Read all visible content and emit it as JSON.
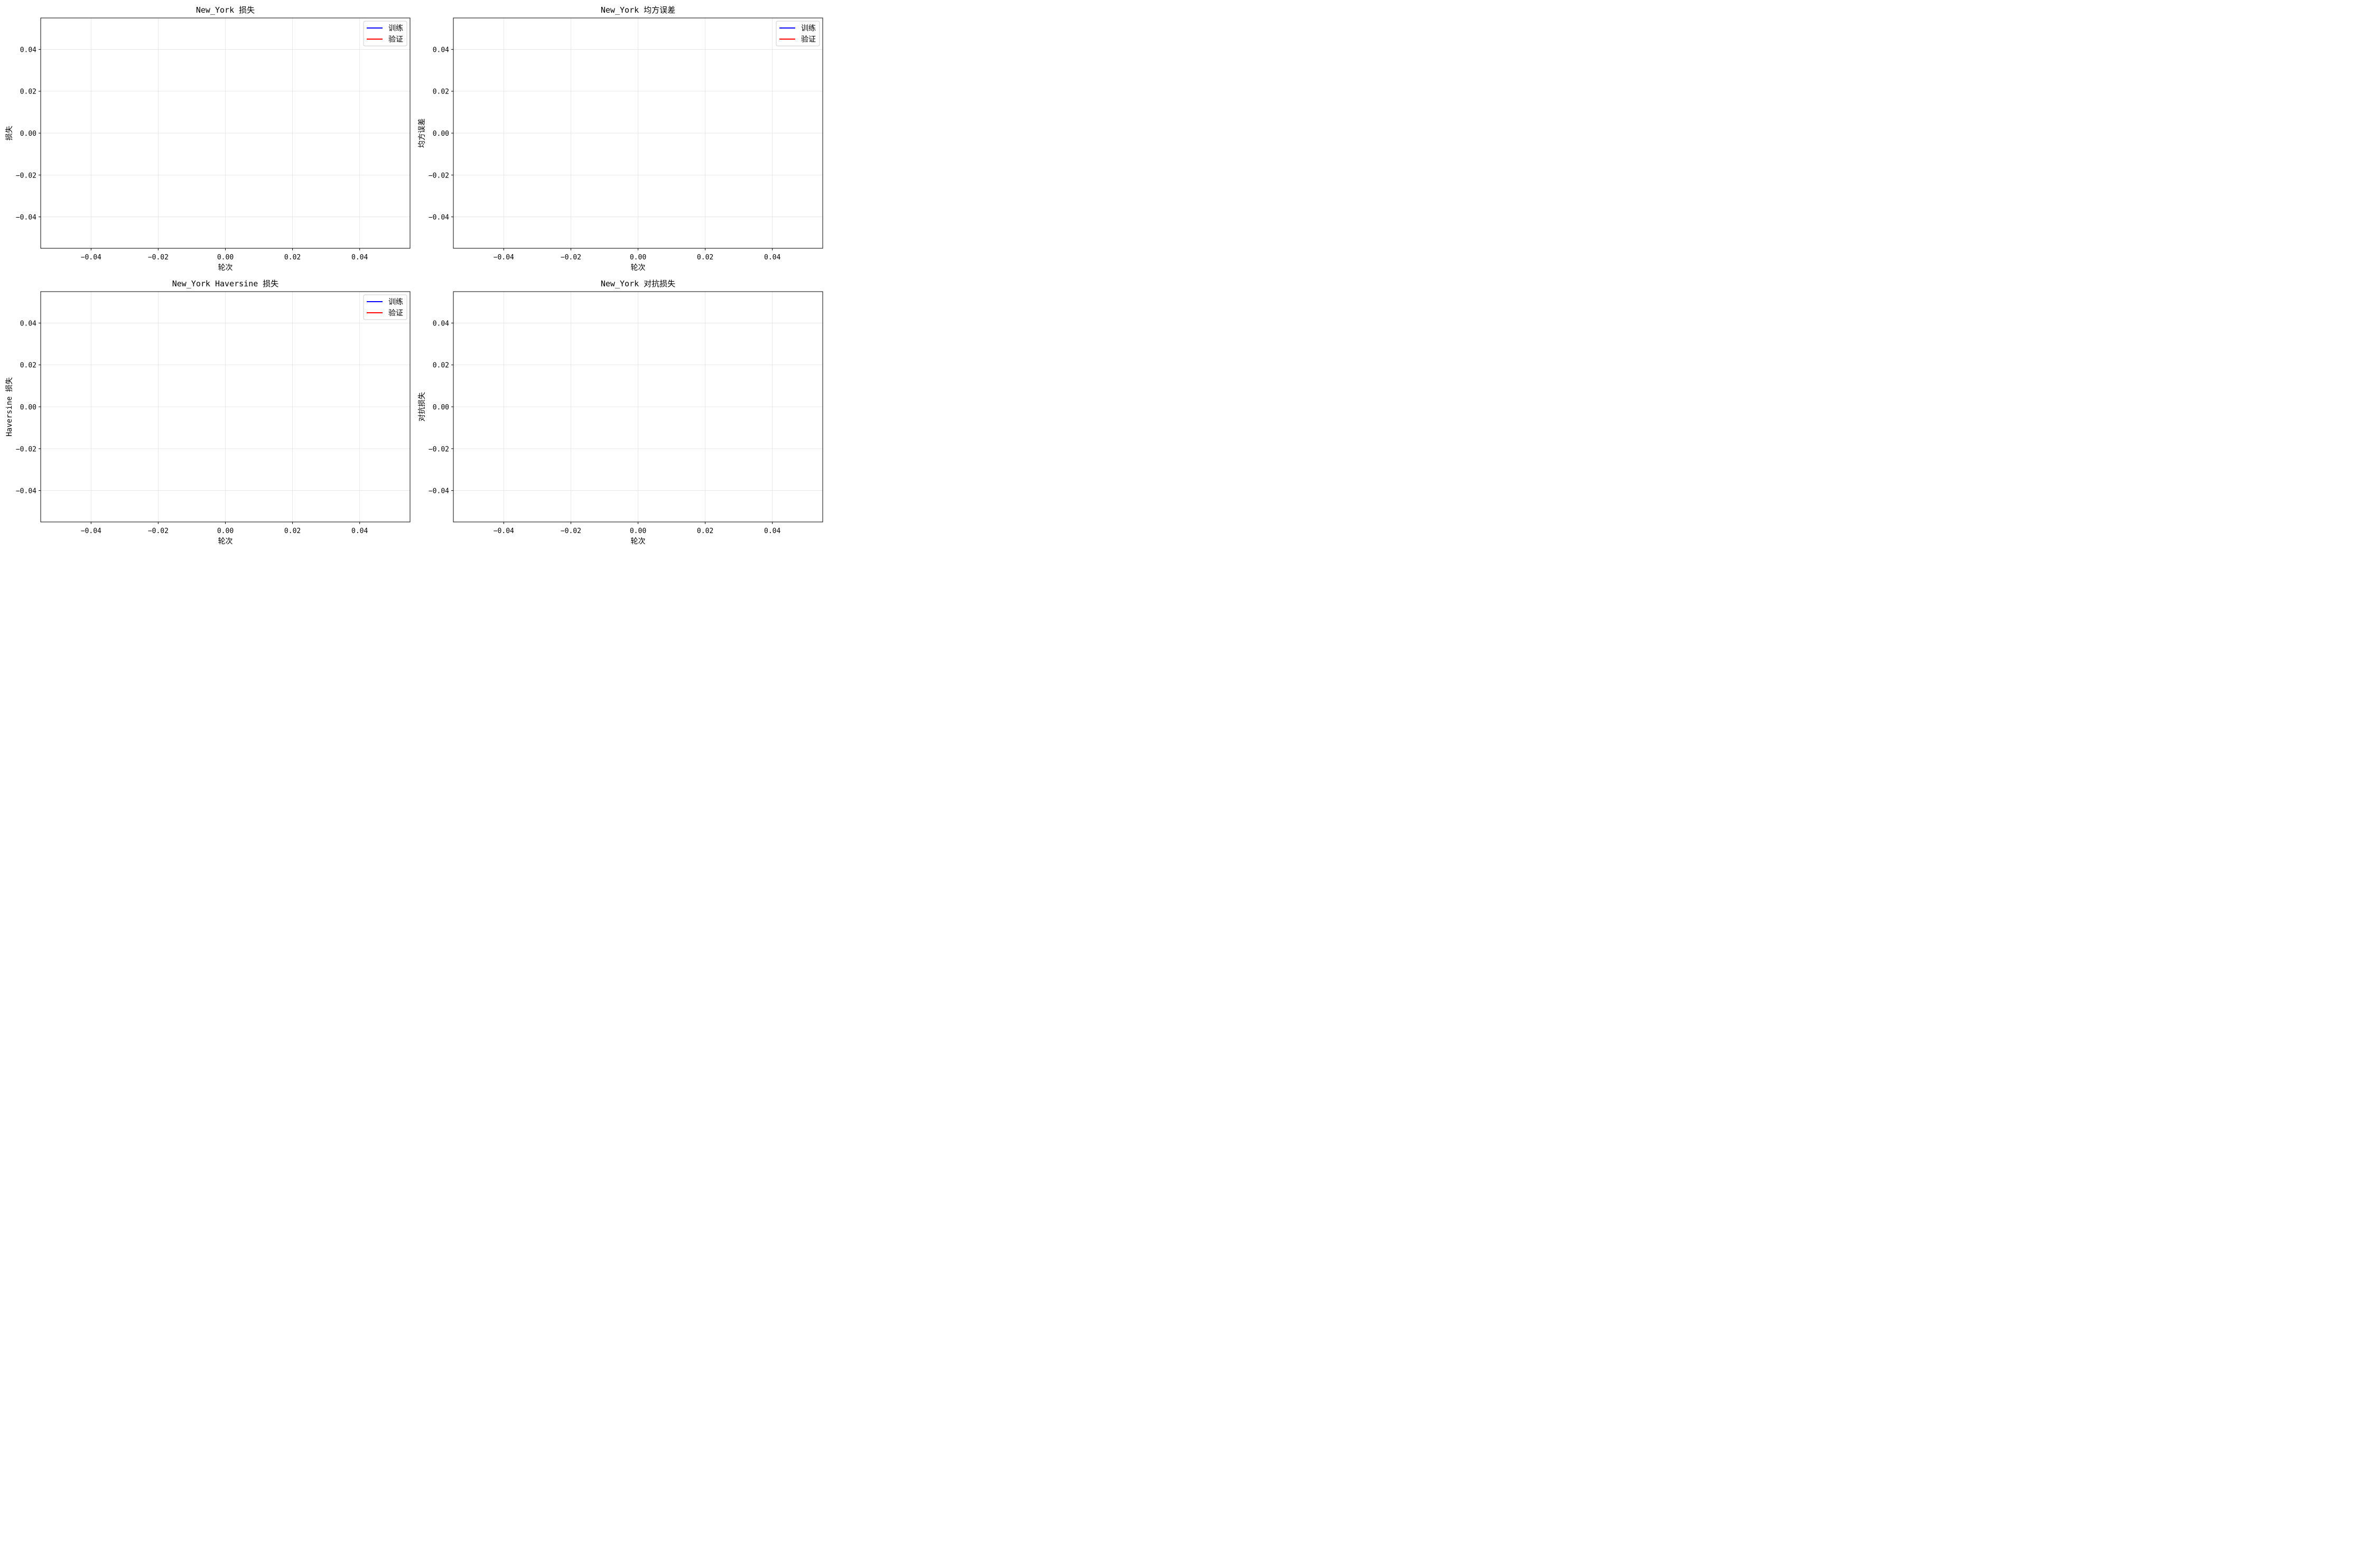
{
  "chart_data": [
    {
      "type": "line",
      "title": "New_York 损失",
      "xlabel": "轮次",
      "ylabel": "损失",
      "xlim": [
        -0.055,
        0.055
      ],
      "ylim": [
        -0.055,
        0.055
      ],
      "xticks": [
        -0.04,
        -0.02,
        0.0,
        0.02,
        0.04
      ],
      "yticks": [
        -0.04,
        -0.02,
        0.0,
        0.02,
        0.04
      ],
      "xtick_labels": [
        "−0.04",
        "−0.02",
        "0.00",
        "0.02",
        "0.04"
      ],
      "ytick_labels": [
        "−0.04",
        "−0.02",
        "0.00",
        "0.02",
        "0.04"
      ],
      "grid": true,
      "legend_position": "top-right",
      "series": [
        {
          "name": "训练",
          "color": "#0000ff",
          "x": [],
          "y": []
        },
        {
          "name": "验证",
          "color": "#ff0000",
          "x": [],
          "y": []
        }
      ]
    },
    {
      "type": "line",
      "title": "New_York 均方误差",
      "xlabel": "轮次",
      "ylabel": "均方误差",
      "xlim": [
        -0.055,
        0.055
      ],
      "ylim": [
        -0.055,
        0.055
      ],
      "xticks": [
        -0.04,
        -0.02,
        0.0,
        0.02,
        0.04
      ],
      "yticks": [
        -0.04,
        -0.02,
        0.0,
        0.02,
        0.04
      ],
      "xtick_labels": [
        "−0.04",
        "−0.02",
        "0.00",
        "0.02",
        "0.04"
      ],
      "ytick_labels": [
        "−0.04",
        "−0.02",
        "0.00",
        "0.02",
        "0.04"
      ],
      "grid": true,
      "legend_position": "top-right",
      "series": [
        {
          "name": "训练",
          "color": "#0000ff",
          "x": [],
          "y": []
        },
        {
          "name": "验证",
          "color": "#ff0000",
          "x": [],
          "y": []
        }
      ]
    },
    {
      "type": "line",
      "title": "New_York Haversine 损失",
      "xlabel": "轮次",
      "ylabel": "Haversine 损失",
      "xlim": [
        -0.055,
        0.055
      ],
      "ylim": [
        -0.055,
        0.055
      ],
      "xticks": [
        -0.04,
        -0.02,
        0.0,
        0.02,
        0.04
      ],
      "yticks": [
        -0.04,
        -0.02,
        0.0,
        0.02,
        0.04
      ],
      "xtick_labels": [
        "−0.04",
        "−0.02",
        "0.00",
        "0.02",
        "0.04"
      ],
      "ytick_labels": [
        "−0.04",
        "−0.02",
        "0.00",
        "0.02",
        "0.04"
      ],
      "grid": true,
      "legend_position": "top-right",
      "series": [
        {
          "name": "训练",
          "color": "#0000ff",
          "x": [],
          "y": []
        },
        {
          "name": "验证",
          "color": "#ff0000",
          "x": [],
          "y": []
        }
      ]
    },
    {
      "type": "line",
      "title": "New_York 对抗损失",
      "xlabel": "轮次",
      "ylabel": "对抗损失",
      "xlim": [
        -0.055,
        0.055
      ],
      "ylim": [
        -0.055,
        0.055
      ],
      "xticks": [
        -0.04,
        -0.02,
        0.0,
        0.02,
        0.04
      ],
      "yticks": [
        -0.04,
        -0.02,
        0.0,
        0.02,
        0.04
      ],
      "xtick_labels": [
        "−0.04",
        "−0.02",
        "0.00",
        "0.02",
        "0.04"
      ],
      "ytick_labels": [
        "−0.04",
        "−0.02",
        "0.00",
        "0.02",
        "0.04"
      ],
      "grid": true,
      "legend_position": "none",
      "series": []
    }
  ]
}
